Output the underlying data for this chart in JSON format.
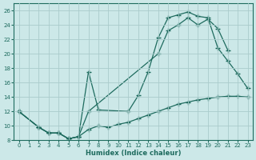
{
  "xlabel": "Humidex (Indice chaleur)",
  "bg_color": "#cce8e8",
  "line_color": "#1e6b5e",
  "grid_color": "#aacccc",
  "xlim": [
    -0.5,
    23.5
  ],
  "ylim": [
    8,
    27
  ],
  "xticks": [
    0,
    1,
    2,
    3,
    4,
    5,
    6,
    7,
    8,
    9,
    10,
    11,
    12,
    13,
    14,
    15,
    16,
    17,
    18,
    19,
    20,
    21,
    22,
    23
  ],
  "yticks": [
    8,
    10,
    12,
    14,
    16,
    18,
    20,
    22,
    24,
    26
  ],
  "curve1_x": [
    0,
    2,
    3,
    4,
    5,
    6,
    7,
    8,
    11,
    12,
    13,
    14,
    15,
    16,
    17,
    18,
    19,
    20,
    21,
    22,
    23
  ],
  "curve1_y": [
    12,
    9.8,
    9.0,
    9.0,
    8.2,
    8.5,
    17.5,
    12.2,
    12.0,
    14.2,
    17.5,
    22.2,
    25.0,
    25.4,
    25.8,
    25.2,
    25.0,
    20.8,
    19.0,
    17.2,
    15.2
  ],
  "curve2_x": [
    0,
    2,
    3,
    4,
    5,
    6,
    7,
    14,
    15,
    16,
    17,
    18,
    19,
    20,
    21
  ],
  "curve2_y": [
    12,
    9.8,
    9.0,
    9.0,
    8.2,
    8.5,
    12.0,
    20.0,
    23.2,
    24.0,
    25.0,
    24.0,
    24.8,
    23.5,
    20.5
  ],
  "curve3_x": [
    0,
    2,
    3,
    4,
    5,
    6,
    7,
    8,
    9,
    10,
    11,
    12,
    13,
    14,
    15,
    16,
    17,
    18,
    19,
    20,
    21,
    22,
    23
  ],
  "curve3_y": [
    12,
    9.8,
    9.0,
    9.0,
    8.2,
    8.5,
    9.5,
    10.0,
    9.8,
    10.2,
    10.5,
    11.0,
    11.5,
    12.0,
    12.5,
    13.0,
    13.3,
    13.6,
    13.8,
    14.0,
    14.1,
    14.1,
    14.0
  ]
}
